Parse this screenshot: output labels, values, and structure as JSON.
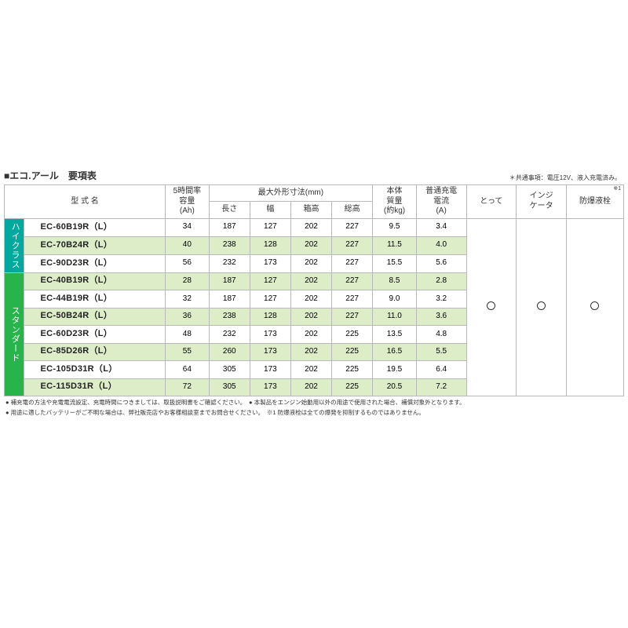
{
  "title": "■エコ.アール　要項表",
  "top_note": "＊共通事項：電圧12V、液入充電済み。",
  "headers": {
    "model": "型 式 名",
    "capacity": "5時間率\n容量\n(Ah)",
    "dims_group": "最大外形寸法(mm)",
    "dims": {
      "length": "長さ",
      "width": "幅",
      "box_h": "箱高",
      "total_h": "総高"
    },
    "mass": "本体\n質量\n(約kg)",
    "current": "普通充電\n電流\n(A)",
    "handle": "とって",
    "indicator": "インジ\nケータ",
    "plug": "防爆液栓",
    "plug_sup": "※1"
  },
  "groups": [
    {
      "label": "ハイクラス",
      "class": "hi-class",
      "rows": 3
    },
    {
      "label": "スタンダード",
      "class": "standard",
      "rows": 7
    }
  ],
  "rows": [
    {
      "model": "EC-60B19R（L）",
      "cap": "34",
      "l": "187",
      "w": "127",
      "bh": "202",
      "th": "227",
      "mass": "9.5",
      "cur": "3.4",
      "bg": "#ffffff"
    },
    {
      "model": "EC-70B24R（L）",
      "cap": "40",
      "l": "238",
      "w": "128",
      "bh": "202",
      "th": "227",
      "mass": "11.5",
      "cur": "4.0",
      "bg": "#dcedc8"
    },
    {
      "model": "EC-90D23R（L）",
      "cap": "56",
      "l": "232",
      "w": "173",
      "bh": "202",
      "th": "227",
      "mass": "15.5",
      "cur": "5.6",
      "bg": "#ffffff"
    },
    {
      "model": "EC-40B19R（L）",
      "cap": "28",
      "l": "187",
      "w": "127",
      "bh": "202",
      "th": "227",
      "mass": "8.5",
      "cur": "2.8",
      "bg": "#dcedc8"
    },
    {
      "model": "EC-44B19R（L）",
      "cap": "32",
      "l": "187",
      "w": "127",
      "bh": "202",
      "th": "227",
      "mass": "9.0",
      "cur": "3.2",
      "bg": "#ffffff"
    },
    {
      "model": "EC-50B24R（L）",
      "cap": "36",
      "l": "238",
      "w": "128",
      "bh": "202",
      "th": "227",
      "mass": "11.0",
      "cur": "3.6",
      "bg": "#dcedc8"
    },
    {
      "model": "EC-60D23R（L）",
      "cap": "48",
      "l": "232",
      "w": "173",
      "bh": "202",
      "th": "225",
      "mass": "13.5",
      "cur": "4.8",
      "bg": "#ffffff"
    },
    {
      "model": "EC-85D26R（L）",
      "cap": "55",
      "l": "260",
      "w": "173",
      "bh": "202",
      "th": "225",
      "mass": "16.5",
      "cur": "5.5",
      "bg": "#dcedc8"
    },
    {
      "model": "EC-105D31R（L）",
      "cap": "64",
      "l": "305",
      "w": "173",
      "bh": "202",
      "th": "225",
      "mass": "19.5",
      "cur": "6.4",
      "bg": "#ffffff"
    },
    {
      "model": "EC-115D31R（L）",
      "cap": "72",
      "l": "305",
      "w": "173",
      "bh": "202",
      "th": "225",
      "mass": "20.5",
      "cur": "7.2",
      "bg": "#dcedc8"
    }
  ],
  "footnotes": [
    "● 補充電の方法や充電電流設定、充電時間につきましては、取扱説明書をご確認ください。　● 本製品をエンジン始動用以外の用途で使用された場合、補償対象外となります。",
    "● 用途に適したバッテリーがご不明な場合は、弊社販売店やお客様相談室までお問合せください。　※1 防爆液栓は全ての爆発を抑制するものではありません。"
  ],
  "colors": {
    "border": "#b9b9b9",
    "alt_bg": "#dcedc8",
    "hi_class": "#00a99d",
    "standard": "#26b44b"
  },
  "col_widths": {
    "vert": 22,
    "model": 155,
    "cap": 48,
    "dim": 45,
    "mass": 48,
    "cur": 55,
    "handle": 55,
    "indicator": 55,
    "plug": 63
  }
}
